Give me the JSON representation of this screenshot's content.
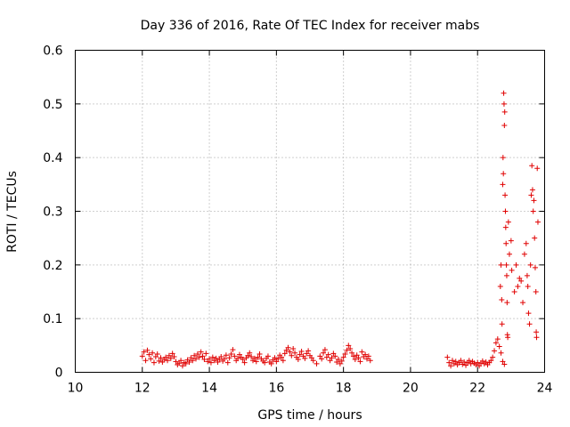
{
  "chart_data": {
    "type": "scatter",
    "title": "Day 336 of 2016, Rate Of TEC Index for receiver mabs",
    "xlabel": "GPS time / hours",
    "ylabel": "ROTI / TECUs",
    "xlim": [
      10,
      24
    ],
    "ylim": [
      0,
      0.6
    ],
    "x_ticks": [
      10,
      12,
      14,
      16,
      18,
      20,
      22,
      24
    ],
    "y_ticks": [
      0,
      0.1,
      0.2,
      0.3,
      0.4,
      0.5,
      0.6
    ],
    "x_tick_labels": [
      "10",
      "12",
      "14",
      "16",
      "18",
      "20",
      "22",
      "24"
    ],
    "y_tick_labels": [
      "0",
      "0.1",
      "0.2",
      "0.3",
      "0.4",
      "0.5",
      "0.6"
    ],
    "grid": true,
    "marker": "+",
    "color": "#e00000",
    "series": [
      {
        "name": "mabs",
        "points": [
          [
            12.0,
            0.03
          ],
          [
            12.05,
            0.038
          ],
          [
            12.1,
            0.022
          ],
          [
            12.15,
            0.041
          ],
          [
            12.2,
            0.033
          ],
          [
            12.25,
            0.025
          ],
          [
            12.3,
            0.036
          ],
          [
            12.35,
            0.018
          ],
          [
            12.4,
            0.029
          ],
          [
            12.45,
            0.034
          ],
          [
            12.5,
            0.021
          ],
          [
            12.55,
            0.027
          ],
          [
            12.6,
            0.019
          ],
          [
            12.65,
            0.024
          ],
          [
            12.7,
            0.028
          ],
          [
            12.75,
            0.022
          ],
          [
            12.8,
            0.031
          ],
          [
            12.85,
            0.026
          ],
          [
            12.9,
            0.035
          ],
          [
            12.95,
            0.029
          ],
          [
            13.0,
            0.02
          ],
          [
            13.05,
            0.014
          ],
          [
            13.1,
            0.017
          ],
          [
            13.15,
            0.022
          ],
          [
            13.2,
            0.012
          ],
          [
            13.25,
            0.018
          ],
          [
            13.3,
            0.016
          ],
          [
            13.35,
            0.023
          ],
          [
            13.4,
            0.019
          ],
          [
            13.45,
            0.027
          ],
          [
            13.5,
            0.022
          ],
          [
            13.55,
            0.031
          ],
          [
            13.6,
            0.025
          ],
          [
            13.65,
            0.034
          ],
          [
            13.7,
            0.028
          ],
          [
            13.75,
            0.038
          ],
          [
            13.8,
            0.03
          ],
          [
            13.85,
            0.024
          ],
          [
            13.9,
            0.035
          ],
          [
            13.95,
            0.02
          ],
          [
            14.0,
            0.025
          ],
          [
            14.05,
            0.018
          ],
          [
            14.1,
            0.028
          ],
          [
            14.15,
            0.022
          ],
          [
            14.2,
            0.026
          ],
          [
            14.25,
            0.019
          ],
          [
            14.3,
            0.024
          ],
          [
            14.35,
            0.029
          ],
          [
            14.4,
            0.021
          ],
          [
            14.45,
            0.025
          ],
          [
            14.5,
            0.032
          ],
          [
            14.55,
            0.018
          ],
          [
            14.6,
            0.027
          ],
          [
            14.65,
            0.034
          ],
          [
            14.7,
            0.042
          ],
          [
            14.75,
            0.03
          ],
          [
            14.8,
            0.022
          ],
          [
            14.85,
            0.026
          ],
          [
            14.9,
            0.033
          ],
          [
            14.95,
            0.028
          ],
          [
            15.0,
            0.024
          ],
          [
            15.05,
            0.018
          ],
          [
            15.1,
            0.027
          ],
          [
            15.15,
            0.031
          ],
          [
            15.2,
            0.036
          ],
          [
            15.25,
            0.029
          ],
          [
            15.3,
            0.022
          ],
          [
            15.35,
            0.026
          ],
          [
            15.4,
            0.02
          ],
          [
            15.45,
            0.028
          ],
          [
            15.5,
            0.034
          ],
          [
            15.55,
            0.025
          ],
          [
            15.6,
            0.021
          ],
          [
            15.65,
            0.018
          ],
          [
            15.7,
            0.026
          ],
          [
            15.75,
            0.03
          ],
          [
            15.8,
            0.019
          ],
          [
            15.85,
            0.016
          ],
          [
            15.9,
            0.023
          ],
          [
            15.95,
            0.027
          ],
          [
            16.0,
            0.02
          ],
          [
            16.05,
            0.025
          ],
          [
            16.1,
            0.032
          ],
          [
            16.15,
            0.028
          ],
          [
            16.2,
            0.022
          ],
          [
            16.25,
            0.035
          ],
          [
            16.3,
            0.041
          ],
          [
            16.35,
            0.046
          ],
          [
            16.4,
            0.038
          ],
          [
            16.45,
            0.031
          ],
          [
            16.5,
            0.044
          ],
          [
            16.55,
            0.036
          ],
          [
            16.6,
            0.028
          ],
          [
            16.65,
            0.024
          ],
          [
            16.7,
            0.033
          ],
          [
            16.75,
            0.039
          ],
          [
            16.8,
            0.03
          ],
          [
            16.85,
            0.026
          ],
          [
            16.9,
            0.035
          ],
          [
            16.95,
            0.04
          ],
          [
            17.0,
            0.031
          ],
          [
            17.05,
            0.027
          ],
          [
            17.1,
            0.022
          ],
          [
            17.2,
            0.016
          ],
          [
            17.3,
            0.03
          ],
          [
            17.35,
            0.025
          ],
          [
            17.4,
            0.036
          ],
          [
            17.45,
            0.042
          ],
          [
            17.5,
            0.028
          ],
          [
            17.55,
            0.033
          ],
          [
            17.6,
            0.022
          ],
          [
            17.65,
            0.027
          ],
          [
            17.7,
            0.035
          ],
          [
            17.75,
            0.03
          ],
          [
            17.8,
            0.019
          ],
          [
            17.85,
            0.024
          ],
          [
            17.9,
            0.016
          ],
          [
            17.95,
            0.021
          ],
          [
            18.0,
            0.028
          ],
          [
            18.05,
            0.034
          ],
          [
            18.1,
            0.041
          ],
          [
            18.15,
            0.05
          ],
          [
            18.2,
            0.044
          ],
          [
            18.25,
            0.036
          ],
          [
            18.3,
            0.03
          ],
          [
            18.35,
            0.024
          ],
          [
            18.4,
            0.032
          ],
          [
            18.45,
            0.027
          ],
          [
            18.5,
            0.02
          ],
          [
            18.55,
            0.038
          ],
          [
            18.6,
            0.029
          ],
          [
            18.65,
            0.033
          ],
          [
            18.7,
            0.025
          ],
          [
            18.75,
            0.03
          ],
          [
            18.8,
            0.022
          ],
          [
            21.1,
            0.028
          ],
          [
            21.15,
            0.018
          ],
          [
            21.2,
            0.012
          ],
          [
            21.25,
            0.022
          ],
          [
            21.3,
            0.016
          ],
          [
            21.35,
            0.02
          ],
          [
            21.4,
            0.014
          ],
          [
            21.45,
            0.018
          ],
          [
            21.5,
            0.022
          ],
          [
            21.55,
            0.015
          ],
          [
            21.6,
            0.019
          ],
          [
            21.65,
            0.013
          ],
          [
            21.7,
            0.018
          ],
          [
            21.75,
            0.022
          ],
          [
            21.8,
            0.016
          ],
          [
            21.85,
            0.02
          ],
          [
            21.9,
            0.017
          ],
          [
            21.95,
            0.014
          ],
          [
            22.0,
            0.018
          ],
          [
            22.05,
            0.012
          ],
          [
            22.1,
            0.017
          ],
          [
            22.15,
            0.021
          ],
          [
            22.2,
            0.016
          ],
          [
            22.25,
            0.019
          ],
          [
            22.3,
            0.014
          ],
          [
            22.35,
            0.018
          ],
          [
            22.4,
            0.022
          ],
          [
            22.45,
            0.028
          ],
          [
            22.5,
            0.04
          ],
          [
            22.55,
            0.055
          ],
          [
            22.6,
            0.062
          ],
          [
            22.65,
            0.048
          ],
          [
            22.7,
            0.036
          ],
          [
            22.75,
            0.02
          ],
          [
            22.8,
            0.015
          ],
          [
            22.68,
            0.16
          ],
          [
            22.7,
            0.2
          ],
          [
            22.72,
            0.135
          ],
          [
            22.73,
            0.09
          ],
          [
            22.75,
            0.35
          ],
          [
            22.76,
            0.4
          ],
          [
            22.77,
            0.37
          ],
          [
            22.78,
            0.52
          ],
          [
            22.79,
            0.5
          ],
          [
            22.8,
            0.46
          ],
          [
            22.81,
            0.485
          ],
          [
            22.82,
            0.33
          ],
          [
            22.83,
            0.3
          ],
          [
            22.84,
            0.27
          ],
          [
            22.85,
            0.24
          ],
          [
            22.86,
            0.2
          ],
          [
            22.87,
            0.18
          ],
          [
            22.88,
            0.13
          ],
          [
            22.89,
            0.07
          ],
          [
            22.9,
            0.065
          ],
          [
            22.92,
            0.28
          ],
          [
            22.95,
            0.22
          ],
          [
            23.0,
            0.245
          ],
          [
            23.02,
            0.19
          ],
          [
            23.1,
            0.15
          ],
          [
            23.15,
            0.2
          ],
          [
            23.2,
            0.16
          ],
          [
            23.25,
            0.175
          ],
          [
            23.3,
            0.17
          ],
          [
            23.35,
            0.13
          ],
          [
            23.4,
            0.22
          ],
          [
            23.45,
            0.24
          ],
          [
            23.48,
            0.18
          ],
          [
            23.5,
            0.16
          ],
          [
            23.52,
            0.11
          ],
          [
            23.55,
            0.09
          ],
          [
            23.58,
            0.2
          ],
          [
            23.6,
            0.33
          ],
          [
            23.62,
            0.385
          ],
          [
            23.64,
            0.34
          ],
          [
            23.66,
            0.3
          ],
          [
            23.68,
            0.32
          ],
          [
            23.7,
            0.25
          ],
          [
            23.72,
            0.195
          ],
          [
            23.74,
            0.15
          ],
          [
            23.75,
            0.075
          ],
          [
            23.76,
            0.065
          ],
          [
            23.78,
            0.38
          ],
          [
            23.8,
            0.28
          ]
        ]
      }
    ]
  }
}
